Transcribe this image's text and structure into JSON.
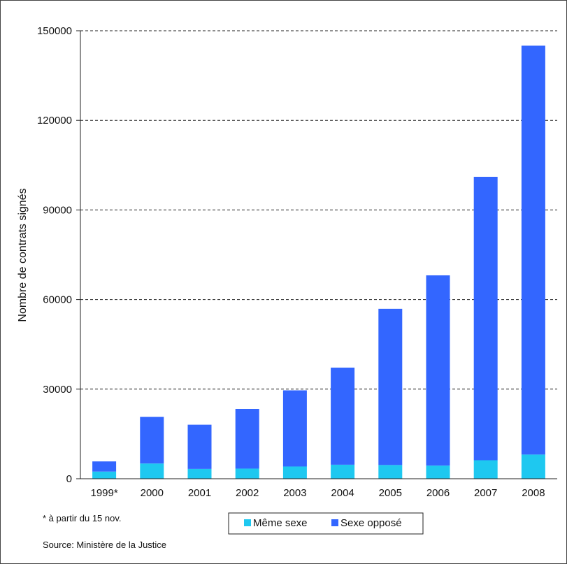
{
  "chart_data": {
    "type": "bar",
    "stacked": true,
    "categories": [
      "1999*",
      "2000",
      "2001",
      "2002",
      "2003",
      "2004",
      "2005",
      "2006",
      "2007",
      "2008"
    ],
    "series": [
      {
        "name": "Même sexe",
        "color": "#1ec8f0",
        "values": [
          2400,
          5100,
          3300,
          3400,
          4100,
          4700,
          4600,
          4400,
          6200,
          8100
        ]
      },
      {
        "name": "Sexe opposé",
        "color": "#3366ff",
        "values": [
          3400,
          15600,
          14800,
          20000,
          25500,
          32500,
          52300,
          63700,
          94900,
          136900
        ]
      }
    ],
    "ylabel": "Nombre de contrats signés",
    "ylim": [
      0,
      150000
    ],
    "yticks": [
      0,
      30000,
      60000,
      90000,
      120000,
      150000
    ],
    "grid": "dashed horizontal",
    "legend_position": "bottom"
  },
  "footnote": "* à partir du 15 nov.",
  "source": "Source: Ministère de la Justice"
}
